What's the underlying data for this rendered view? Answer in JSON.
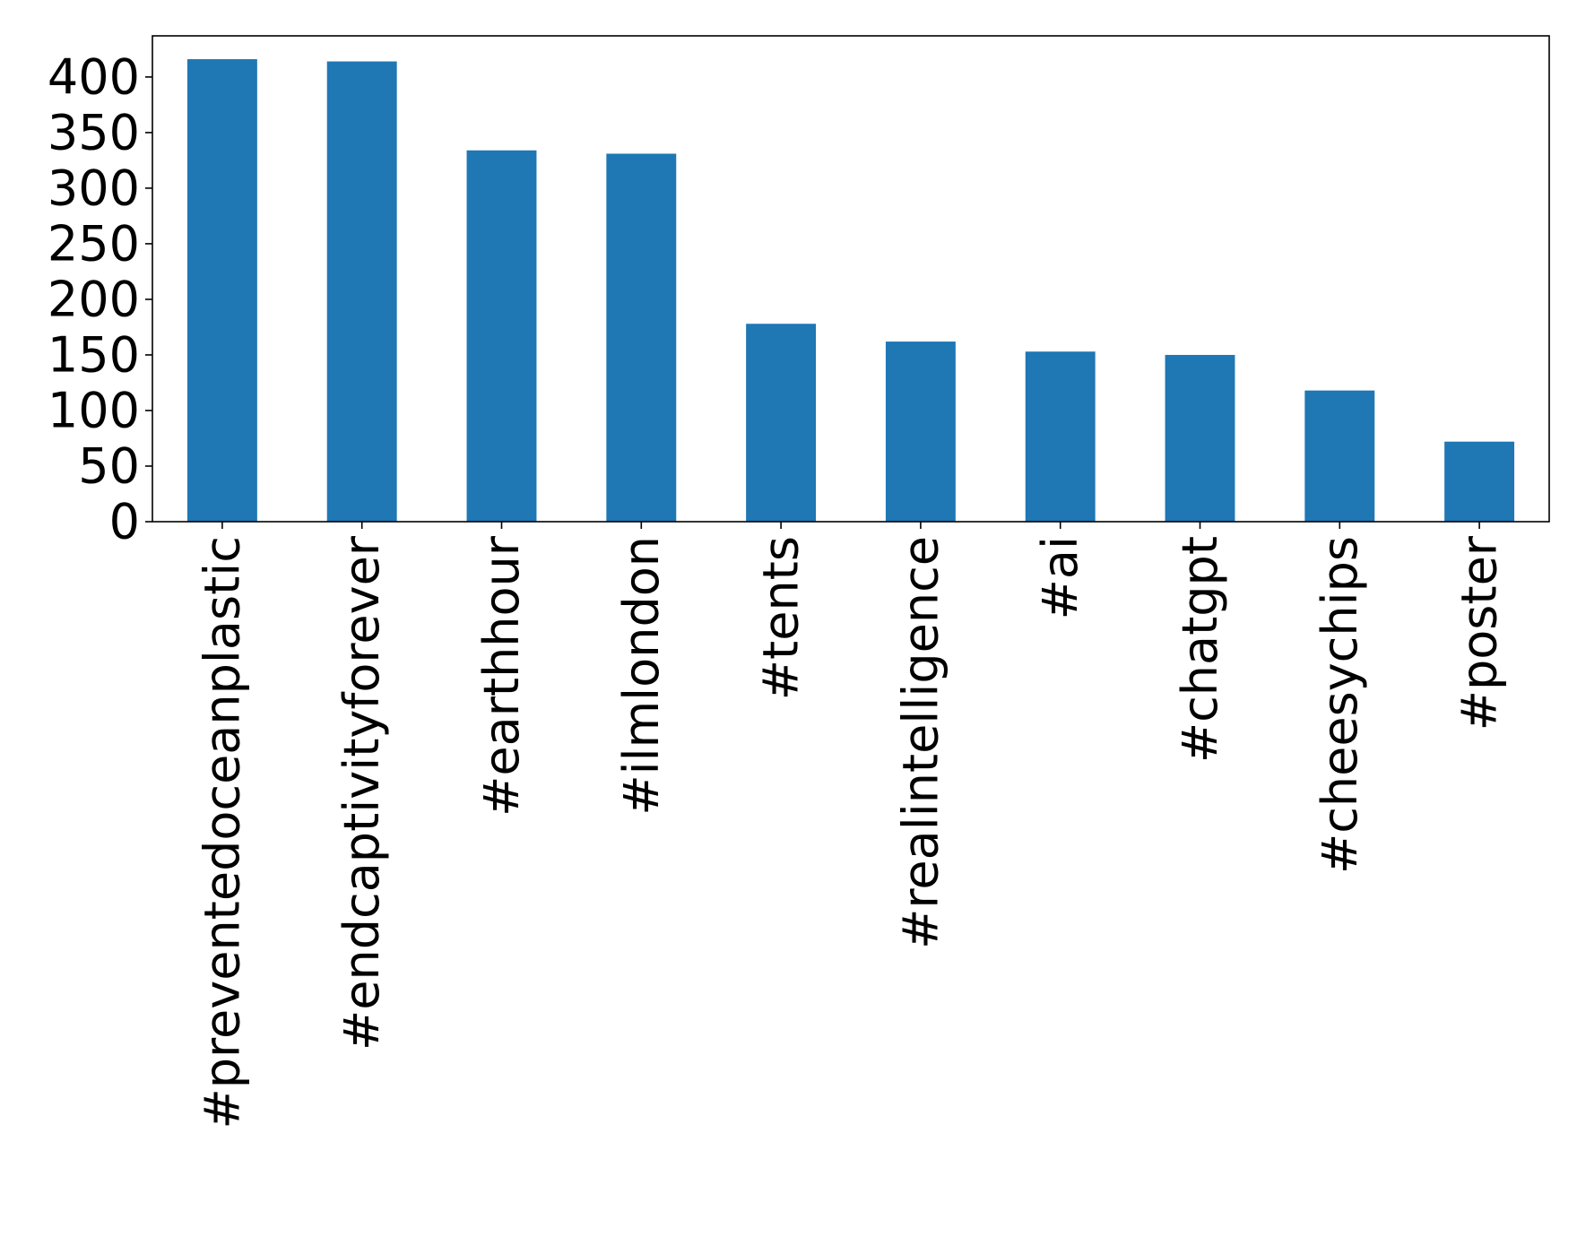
{
  "chart_data": {
    "type": "bar",
    "title": "",
    "xlabel": "",
    "ylabel": "",
    "categories": [
      "#preventedoceanplastic",
      "#endcaptivityforever",
      "#earthhour",
      "#ilmlondon",
      "#tents",
      "#realintelligence",
      "#ai",
      "#chatgpt",
      "#cheesychips",
      "#poster"
    ],
    "values": [
      416,
      414,
      334,
      331,
      178,
      162,
      153,
      150,
      118,
      72
    ],
    "ylim": [
      0,
      437
    ],
    "yticks": [
      0,
      50,
      100,
      150,
      200,
      250,
      300,
      350,
      400
    ],
    "grid": false,
    "legend": "none",
    "bar_color": "#1f77b4",
    "axis_color": "#000000"
  }
}
